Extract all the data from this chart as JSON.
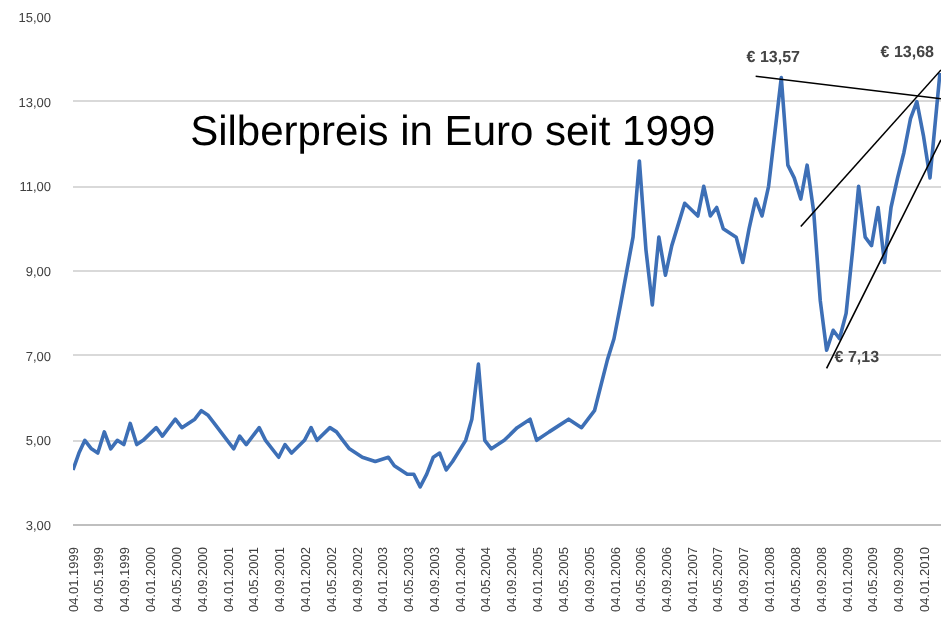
{
  "chart_data": {
    "type": "line",
    "title": "Silberpreis in Euro seit 1999",
    "xlim": [
      "1999-01-04",
      "2010-03-25"
    ],
    "ylim": [
      3,
      15
    ],
    "yticks": [
      {
        "value": 3,
        "label": "3,00"
      },
      {
        "value": 5,
        "label": "5,00"
      },
      {
        "value": 7,
        "label": "7,00"
      },
      {
        "value": 9,
        "label": "9,00"
      },
      {
        "value": 11,
        "label": "11,00"
      },
      {
        "value": 13,
        "label": "13,00"
      },
      {
        "value": 15,
        "label": "15,00"
      }
    ],
    "xticks": [
      {
        "value": "1999-01-04",
        "label": "04.01.1999"
      },
      {
        "value": "1999-05-04",
        "label": "04.05.1999"
      },
      {
        "value": "1999-09-04",
        "label": "04.09.1999"
      },
      {
        "value": "2000-01-04",
        "label": "04.01.2000"
      },
      {
        "value": "2000-05-04",
        "label": "04.05.2000"
      },
      {
        "value": "2000-09-04",
        "label": "04.09.2000"
      },
      {
        "value": "2001-01-04",
        "label": "04.01.2001"
      },
      {
        "value": "2001-05-04",
        "label": "04.05.2001"
      },
      {
        "value": "2001-09-04",
        "label": "04.09.2001"
      },
      {
        "value": "2002-01-04",
        "label": "04.01.2002"
      },
      {
        "value": "2002-05-04",
        "label": "04.05.2002"
      },
      {
        "value": "2002-09-04",
        "label": "04.09.2002"
      },
      {
        "value": "2003-01-04",
        "label": "04.01.2003"
      },
      {
        "value": "2003-05-04",
        "label": "04.05.2003"
      },
      {
        "value": "2003-09-04",
        "label": "04.09.2003"
      },
      {
        "value": "2004-01-04",
        "label": "04.01.2004"
      },
      {
        "value": "2004-05-04",
        "label": "04.05.2004"
      },
      {
        "value": "2004-09-04",
        "label": "04.09.2004"
      },
      {
        "value": "2005-01-04",
        "label": "04.01.2005"
      },
      {
        "value": "2005-05-04",
        "label": "04.05.2005"
      },
      {
        "value": "2005-09-04",
        "label": "04.09.2005"
      },
      {
        "value": "2006-01-04",
        "label": "04.01.2006"
      },
      {
        "value": "2006-05-04",
        "label": "04.05.2006"
      },
      {
        "value": "2006-09-04",
        "label": "04.09.2006"
      },
      {
        "value": "2007-01-04",
        "label": "04.01.2007"
      },
      {
        "value": "2007-05-04",
        "label": "04.05.2007"
      },
      {
        "value": "2007-09-04",
        "label": "04.09.2007"
      },
      {
        "value": "2008-01-04",
        "label": "04.01.2008"
      },
      {
        "value": "2008-05-04",
        "label": "04.05.2008"
      },
      {
        "value": "2008-09-04",
        "label": "04.09.2008"
      },
      {
        "value": "2009-01-04",
        "label": "04.01.2009"
      },
      {
        "value": "2009-05-04",
        "label": "04.05.2009"
      },
      {
        "value": "2009-09-04",
        "label": "04.09.2009"
      },
      {
        "value": "2010-01-04",
        "label": "04.01.2010"
      }
    ],
    "grid": "y",
    "line_style": "solid",
    "marker": "none",
    "series": [
      {
        "color": "#3d6fb6",
        "x": [
          "1999-01-04",
          "1999-02",
          "1999-03",
          "1999-04",
          "1999-05",
          "1999-06",
          "1999-07",
          "1999-08",
          "1999-09",
          "1999-10",
          "1999-11",
          "1999-12",
          "2000-02",
          "2000-03",
          "2000-05",
          "2000-06",
          "2000-08",
          "2000-09",
          "2000-10",
          "2000-11",
          "2001-01",
          "2001-02",
          "2001-03",
          "2001-04",
          "2001-06",
          "2001-07",
          "2001-09",
          "2001-10",
          "2001-11",
          "2002-01",
          "2002-02",
          "2002-03",
          "2002-05",
          "2002-06",
          "2002-07",
          "2002-08",
          "2002-10",
          "2002-12",
          "2003-02",
          "2003-03",
          "2003-05",
          "2003-06",
          "2003-07",
          "2003-08",
          "2003-09",
          "2003-10",
          "2003-11",
          "2003-12",
          "2004-02",
          "2004-03",
          "2004-04",
          "2004-05",
          "2004-06",
          "2004-08",
          "2004-10",
          "2004-12",
          "2005-01",
          "2005-03",
          "2005-04",
          "2005-06",
          "2005-08",
          "2005-10",
          "2005-12",
          "2006-01",
          "2006-02",
          "2006-04",
          "2006-05",
          "2006-06",
          "2006-07",
          "2006-08",
          "2006-09",
          "2006-10",
          "2006-12",
          "2007-02",
          "2007-03",
          "2007-04",
          "2007-05",
          "2007-06",
          "2007-08",
          "2007-09",
          "2007-10",
          "2007-11",
          "2007-12",
          "2008-01",
          "2008-03",
          "2008-04",
          "2008-05",
          "2008-06",
          "2008-07",
          "2008-08",
          "2008-09",
          "2008-10",
          "2008-11",
          "2008-12",
          "2009-01",
          "2009-02",
          "2009-03",
          "2009-04",
          "2009-05",
          "2009-06",
          "2009-07",
          "2009-08",
          "2009-09",
          "2009-10",
          "2009-11",
          "2009-12",
          "2010-01",
          "2010-02",
          "2010-03-20"
        ],
        "values": [
          4.3,
          4.7,
          5.0,
          4.8,
          4.7,
          5.2,
          4.8,
          5.0,
          4.9,
          5.4,
          4.9,
          5.0,
          5.3,
          5.1,
          5.5,
          5.3,
          5.5,
          5.7,
          5.6,
          5.4,
          5.0,
          4.8,
          5.1,
          4.9,
          5.3,
          5.0,
          4.6,
          4.9,
          4.7,
          5.0,
          5.3,
          5.0,
          5.3,
          5.2,
          5.0,
          4.8,
          4.6,
          4.5,
          4.6,
          4.4,
          4.2,
          4.2,
          3.9,
          4.2,
          4.6,
          4.7,
          4.3,
          4.5,
          5.0,
          5.5,
          6.8,
          5.0,
          4.8,
          5.0,
          5.3,
          5.5,
          5.0,
          5.2,
          5.3,
          5.5,
          5.3,
          5.7,
          6.9,
          7.4,
          8.2,
          9.8,
          11.6,
          9.5,
          8.2,
          9.8,
          8.9,
          9.6,
          10.6,
          10.3,
          11.0,
          10.3,
          10.5,
          10.0,
          9.8,
          9.2,
          10.0,
          10.7,
          10.3,
          11.0,
          13.57,
          11.5,
          11.2,
          10.7,
          11.5,
          10.4,
          8.3,
          7.13,
          7.6,
          7.4,
          8.0,
          9.5,
          11.0,
          9.8,
          9.6,
          10.5,
          9.2,
          10.5,
          11.2,
          11.8,
          12.6,
          13.0,
          12.2,
          11.2,
          13.68
        ]
      },
      {
        "type": "line",
        "color": "#000000",
        "x": [
          "2007-11",
          "2010-03-25"
        ],
        "values": [
          13.6,
          13.07
        ]
      },
      {
        "type": "line",
        "color": "#000000",
        "x": [
          "2008-06",
          "2010-03-25"
        ],
        "values": [
          10.05,
          13.75
        ]
      },
      {
        "type": "line",
        "color": "#000000",
        "x": [
          "2008-10",
          "2010-03-25"
        ],
        "values": [
          6.7,
          12.1
        ]
      }
    ],
    "annotations": [
      {
        "text": "€ 13,57",
        "x": "2008-03",
        "y": 13.57
      },
      {
        "text": "€ 13,68",
        "x": "2010-03-20",
        "y": 13.68
      },
      {
        "text": "€ 7,13",
        "x": "2008-10",
        "y": 7.13
      }
    ]
  }
}
